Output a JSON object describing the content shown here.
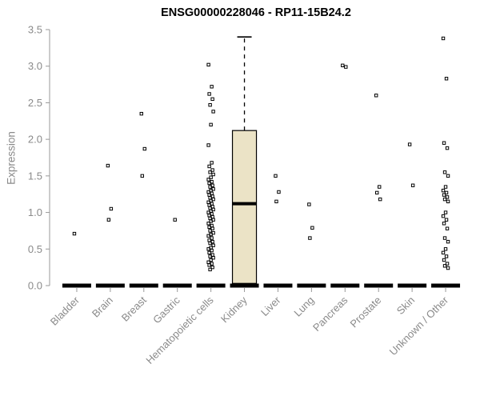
{
  "chart_data": {
    "type": "boxplot",
    "title": "ENSG00000228046 - RP11-15B24.2",
    "ylabel": "Expression",
    "ylim": [
      0,
      3.5
    ],
    "yticks": [
      0.0,
      0.5,
      1.0,
      1.5,
      2.0,
      2.5,
      3.0,
      3.5
    ],
    "grid": false,
    "legend": "none",
    "axis_color": "#999999",
    "label_color": "#8a8a8a",
    "box_fill": "#ebe3c6",
    "point_color": "#000000",
    "categories": [
      "Bladder",
      "Brain",
      "Breast",
      "Gastric",
      "Hematopoietic cells",
      "Kidney",
      "Liver",
      "Lung",
      "Pancreas",
      "Prostate",
      "Skin",
      "Unknown / Other"
    ],
    "boxes": [
      {
        "category": "Bladder",
        "median": 0,
        "q1": 0,
        "q3": 0,
        "whisker_low": 0,
        "whisker_high": 0,
        "zero_bar": true,
        "outliers": [
          0.71
        ]
      },
      {
        "category": "Brain",
        "median": 0,
        "q1": 0,
        "q3": 0,
        "whisker_low": 0,
        "whisker_high": 0,
        "zero_bar": true,
        "outliers": [
          1.64,
          1.05,
          0.9
        ]
      },
      {
        "category": "Breast",
        "median": 0,
        "q1": 0,
        "q3": 0,
        "whisker_low": 0,
        "whisker_high": 0,
        "zero_bar": true,
        "outliers": [
          2.35,
          1.87,
          1.5
        ]
      },
      {
        "category": "Gastric",
        "median": 0,
        "q1": 0,
        "q3": 0,
        "whisker_low": 0,
        "whisker_high": 0,
        "zero_bar": true,
        "outliers": [
          0.9
        ]
      },
      {
        "category": "Hematopoietic cells",
        "median": 0,
        "q1": 0,
        "q3": 0,
        "whisker_low": 0,
        "whisker_high": 0,
        "zero_bar": true,
        "outliers": [
          3.02,
          2.72,
          2.62,
          2.55,
          2.47,
          2.38,
          2.2,
          1.92,
          1.68,
          1.63,
          1.58,
          1.55,
          1.52,
          1.48,
          1.45,
          1.42,
          1.4,
          1.37,
          1.35,
          1.32,
          1.3,
          1.28,
          1.26,
          1.24,
          1.22,
          1.2,
          1.18,
          1.16,
          1.14,
          1.12,
          1.1,
          1.08,
          1.06,
          1.04,
          1.02,
          1.0,
          0.98,
          0.96,
          0.94,
          0.92,
          0.9,
          0.88,
          0.85,
          0.82,
          0.8,
          0.78,
          0.75,
          0.72,
          0.7,
          0.68,
          0.65,
          0.62,
          0.6,
          0.58,
          0.55,
          0.52,
          0.5,
          0.48,
          0.45,
          0.42,
          0.4,
          0.38,
          0.35,
          0.32,
          0.3,
          0.28,
          0.25,
          0.22
        ]
      },
      {
        "category": "Kidney",
        "median": 1.12,
        "q1": 0.03,
        "q3": 2.12,
        "whisker_low": 0,
        "whisker_high": 3.4,
        "zero_bar": true,
        "outliers": []
      },
      {
        "category": "Liver",
        "median": 0,
        "q1": 0,
        "q3": 0,
        "whisker_low": 0,
        "whisker_high": 0,
        "zero_bar": true,
        "outliers": [
          1.5,
          1.28,
          1.15
        ]
      },
      {
        "category": "Lung",
        "median": 0,
        "q1": 0,
        "q3": 0,
        "whisker_low": 0,
        "whisker_high": 0,
        "zero_bar": true,
        "outliers": [
          1.11,
          0.79,
          0.65
        ]
      },
      {
        "category": "Pancreas",
        "median": 0,
        "q1": 0,
        "q3": 0,
        "whisker_low": 0,
        "whisker_high": 0,
        "zero_bar": true,
        "outliers": [
          3.01,
          2.99
        ]
      },
      {
        "category": "Prostate",
        "median": 0,
        "q1": 0,
        "q3": 0,
        "whisker_low": 0,
        "whisker_high": 0,
        "zero_bar": true,
        "outliers": [
          2.6,
          1.35,
          1.27,
          1.18
        ]
      },
      {
        "category": "Skin",
        "median": 0,
        "q1": 0,
        "q3": 0,
        "whisker_low": 0,
        "whisker_high": 0,
        "zero_bar": true,
        "outliers": [
          1.93,
          1.37
        ]
      },
      {
        "category": "Unknown / Other",
        "median": 0,
        "q1": 0,
        "q3": 0,
        "whisker_low": 0,
        "whisker_high": 0,
        "zero_bar": true,
        "outliers": [
          3.38,
          2.83,
          1.95,
          1.88,
          1.55,
          1.5,
          1.35,
          1.3,
          1.27,
          1.24,
          1.21,
          1.18,
          1.15,
          1.0,
          0.95,
          0.9,
          0.85,
          0.78,
          0.65,
          0.6,
          0.5,
          0.45,
          0.4,
          0.35,
          0.3,
          0.27,
          0.24
        ]
      }
    ]
  }
}
